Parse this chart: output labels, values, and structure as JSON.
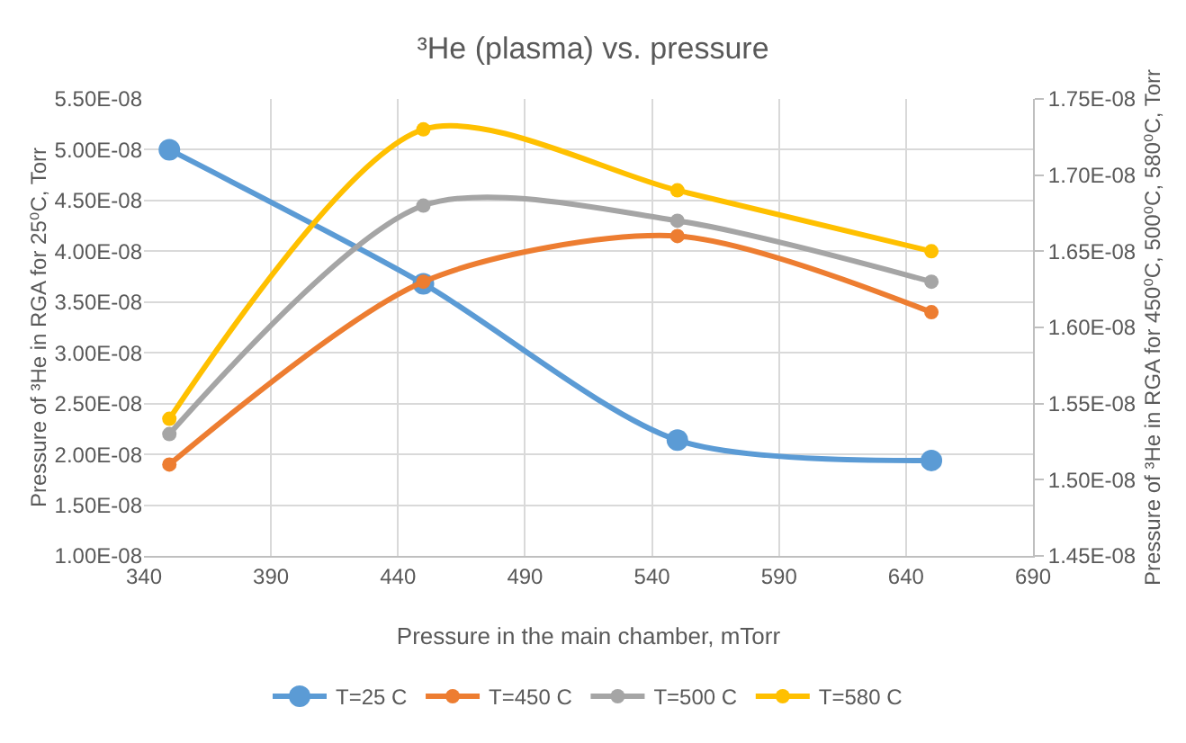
{
  "chart_data": {
    "type": "line",
    "title": "³He (plasma) vs. pressure",
    "xlabel": "Pressure in the main chamber, mTorr",
    "ylabel": "Pressure of ³He in RGA for 25⁰C, Torr",
    "y2label": "Pressure of ³He in RGA for 450⁰C, 500⁰C, 580⁰C, Torr",
    "x": [
      350,
      450,
      550,
      650
    ],
    "series": [
      {
        "name": "T=25 C",
        "color": "#5b9bd5",
        "values": [
          5e-08,
          3.68e-08,
          2.14e-08,
          1.94e-08
        ]
      },
      {
        "name": "T=450 C",
        "color": "#ed7d31",
        "axis": "y2",
        "values": [
          1.51e-08,
          1.63e-08,
          1.66e-08,
          1.61e-08
        ]
      },
      {
        "name": "T=500 C",
        "color": "#a5a5a5",
        "axis": "y2",
        "values": [
          1.53e-08,
          1.68e-08,
          1.67e-08,
          1.63e-08
        ]
      },
      {
        "name": "T=580 C",
        "color": "#ffc000",
        "axis": "y2",
        "values": [
          1.54e-08,
          1.73e-08,
          1.69e-08,
          1.65e-08
        ]
      }
    ],
    "xlim": [
      340,
      690
    ],
    "xticks": [
      340,
      390,
      440,
      490,
      540,
      590,
      640,
      690
    ],
    "ylim": [
      1e-08,
      5.5e-08
    ],
    "yticks": [
      {
        "value": 1e-08,
        "label": "1.00E-08"
      },
      {
        "value": 1.5e-08,
        "label": "1.50E-08"
      },
      {
        "value": 2e-08,
        "label": "2.00E-08"
      },
      {
        "value": 2.5e-08,
        "label": "2.50E-08"
      },
      {
        "value": 3e-08,
        "label": "3.00E-08"
      },
      {
        "value": 3.5e-08,
        "label": "3.50E-08"
      },
      {
        "value": 4e-08,
        "label": "4.00E-08"
      },
      {
        "value": 4.5e-08,
        "label": "4.50E-08"
      },
      {
        "value": 5e-08,
        "label": "5.00E-08"
      },
      {
        "value": 5.5e-08,
        "label": "5.50E-08"
      }
    ],
    "y2lim": [
      1.45e-08,
      1.75e-08
    ],
    "y2ticks": [
      {
        "value": 1.45e-08,
        "label": "1.45E-08"
      },
      {
        "value": 1.5e-08,
        "label": "1.50E-08"
      },
      {
        "value": 1.55e-08,
        "label": "1.55E-08"
      },
      {
        "value": 1.6e-08,
        "label": "1.60E-08"
      },
      {
        "value": 1.65e-08,
        "label": "1.65E-08"
      },
      {
        "value": 1.7e-08,
        "label": "1.70E-08"
      },
      {
        "value": 1.75e-08,
        "label": "1.75E-08"
      }
    ],
    "grid": true,
    "legend": "bottom",
    "marker": "circle"
  }
}
